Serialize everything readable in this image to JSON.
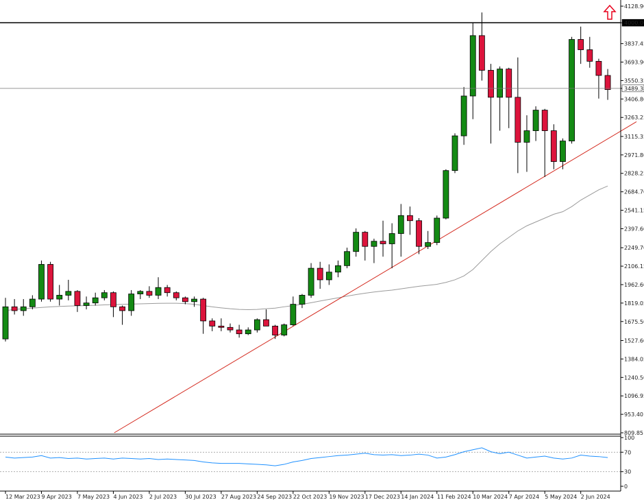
{
  "chart_data": [
    {
      "type": "candlestick",
      "timeframe": "weekly",
      "price_labels": [
        "4128.90",
        "4000.00",
        "3837.45",
        "3693.90",
        "3550.35",
        "3489.38",
        "3406.80",
        "3263.25",
        "3115.35",
        "2971.80",
        "2828.25",
        "2684.70",
        "2541.15",
        "2397.60",
        "2249.70",
        "2106.15",
        "1962.60",
        "1819.05",
        "1675.50",
        "1527.60",
        "1384.05",
        "1240.50",
        "1096.95",
        "953.40",
        "809.85"
      ],
      "ylim": [
        809.85,
        4128.9
      ],
      "date_labels": [
        "12 Mar 2023",
        "9 Apr 2023",
        "7 May 2023",
        "4 Jun 2023",
        "2 Jul 2023",
        "30 Jul 2023",
        "27 Aug 2023",
        "24 Sep 2023",
        "22 Oct 2023",
        "19 Nov 2023",
        "17 Dec 2023",
        "14 Jan 2024",
        "11 Feb 2024",
        "10 Mar 2024",
        "7 Apr 2024",
        "5 May 2024",
        "2 Jun 2024"
      ],
      "candles": [
        {
          "o": 1540,
          "h": 1860,
          "l": 1520,
          "c": 1790
        },
        {
          "o": 1790,
          "h": 1850,
          "l": 1730,
          "c": 1760
        },
        {
          "o": 1760,
          "h": 1850,
          "l": 1720,
          "c": 1790
        },
        {
          "o": 1790,
          "h": 1880,
          "l": 1770,
          "c": 1850
        },
        {
          "o": 1850,
          "h": 2150,
          "l": 1830,
          "c": 2120
        },
        {
          "o": 2120,
          "h": 2140,
          "l": 1830,
          "c": 1850
        },
        {
          "o": 1850,
          "h": 1960,
          "l": 1800,
          "c": 1880
        },
        {
          "o": 1880,
          "h": 2000,
          "l": 1840,
          "c": 1910
        },
        {
          "o": 1910,
          "h": 1920,
          "l": 1750,
          "c": 1800
        },
        {
          "o": 1800,
          "h": 1870,
          "l": 1770,
          "c": 1820
        },
        {
          "o": 1820,
          "h": 1900,
          "l": 1800,
          "c": 1860
        },
        {
          "o": 1860,
          "h": 1920,
          "l": 1840,
          "c": 1900
        },
        {
          "o": 1900,
          "h": 1910,
          "l": 1710,
          "c": 1790
        },
        {
          "o": 1790,
          "h": 1800,
          "l": 1650,
          "c": 1760
        },
        {
          "o": 1760,
          "h": 1920,
          "l": 1720,
          "c": 1890
        },
        {
          "o": 1890,
          "h": 1920,
          "l": 1850,
          "c": 1910
        },
        {
          "o": 1910,
          "h": 1950,
          "l": 1860,
          "c": 1880
        },
        {
          "o": 1880,
          "h": 2020,
          "l": 1850,
          "c": 1940
        },
        {
          "o": 1940,
          "h": 1960,
          "l": 1870,
          "c": 1900
        },
        {
          "o": 1900,
          "h": 1910,
          "l": 1840,
          "c": 1860
        },
        {
          "o": 1860,
          "h": 1870,
          "l": 1810,
          "c": 1830
        },
        {
          "o": 1830,
          "h": 1870,
          "l": 1790,
          "c": 1850
        },
        {
          "o": 1850,
          "h": 1860,
          "l": 1580,
          "c": 1680
        },
        {
          "o": 1680,
          "h": 1700,
          "l": 1600,
          "c": 1640
        },
        {
          "o": 1640,
          "h": 1700,
          "l": 1600,
          "c": 1630
        },
        {
          "o": 1630,
          "h": 1660,
          "l": 1590,
          "c": 1610
        },
        {
          "o": 1610,
          "h": 1650,
          "l": 1550,
          "c": 1580
        },
        {
          "o": 1580,
          "h": 1630,
          "l": 1570,
          "c": 1610
        },
        {
          "o": 1610,
          "h": 1700,
          "l": 1590,
          "c": 1690
        },
        {
          "o": 1690,
          "h": 1770,
          "l": 1640,
          "c": 1640
        },
        {
          "o": 1640,
          "h": 1650,
          "l": 1540,
          "c": 1570
        },
        {
          "o": 1570,
          "h": 1660,
          "l": 1560,
          "c": 1650
        },
        {
          "o": 1650,
          "h": 1870,
          "l": 1640,
          "c": 1810
        },
        {
          "o": 1810,
          "h": 1890,
          "l": 1780,
          "c": 1880
        },
        {
          "o": 1880,
          "h": 2130,
          "l": 1860,
          "c": 2090
        },
        {
          "o": 2090,
          "h": 2140,
          "l": 1930,
          "c": 2000
        },
        {
          "o": 2000,
          "h": 2120,
          "l": 1960,
          "c": 2060
        },
        {
          "o": 2060,
          "h": 2150,
          "l": 2020,
          "c": 2110
        },
        {
          "o": 2110,
          "h": 2250,
          "l": 2090,
          "c": 2220
        },
        {
          "o": 2220,
          "h": 2400,
          "l": 2180,
          "c": 2370
        },
        {
          "o": 2370,
          "h": 2380,
          "l": 2150,
          "c": 2260
        },
        {
          "o": 2260,
          "h": 2320,
          "l": 2130,
          "c": 2300
        },
        {
          "o": 2300,
          "h": 2460,
          "l": 2180,
          "c": 2280
        },
        {
          "o": 2280,
          "h": 2440,
          "l": 2090,
          "c": 2360
        },
        {
          "o": 2360,
          "h": 2590,
          "l": 2180,
          "c": 2500
        },
        {
          "o": 2500,
          "h": 2570,
          "l": 2350,
          "c": 2460
        },
        {
          "o": 2460,
          "h": 2480,
          "l": 2200,
          "c": 2260
        },
        {
          "o": 2260,
          "h": 2380,
          "l": 2240,
          "c": 2290
        },
        {
          "o": 2290,
          "h": 2500,
          "l": 2270,
          "c": 2480
        },
        {
          "o": 2480,
          "h": 2860,
          "l": 2470,
          "c": 2850
        },
        {
          "o": 2850,
          "h": 3140,
          "l": 2830,
          "c": 3120
        },
        {
          "o": 3120,
          "h": 3500,
          "l": 3050,
          "c": 3430
        },
        {
          "o": 3430,
          "h": 4000,
          "l": 3250,
          "c": 3900
        },
        {
          "o": 3900,
          "h": 4080,
          "l": 3550,
          "c": 3630
        },
        {
          "o": 3630,
          "h": 3680,
          "l": 3060,
          "c": 3420
        },
        {
          "o": 3420,
          "h": 3660,
          "l": 3160,
          "c": 3640
        },
        {
          "o": 3640,
          "h": 3650,
          "l": 3180,
          "c": 3420
        },
        {
          "o": 3420,
          "h": 3730,
          "l": 2830,
          "c": 3070
        },
        {
          "o": 3070,
          "h": 3280,
          "l": 2840,
          "c": 3160
        },
        {
          "o": 3160,
          "h": 3350,
          "l": 3080,
          "c": 3320
        },
        {
          "o": 3320,
          "h": 3330,
          "l": 2800,
          "c": 3160
        },
        {
          "o": 3160,
          "h": 3210,
          "l": 2860,
          "c": 2920
        },
        {
          "o": 2920,
          "h": 3100,
          "l": 2860,
          "c": 3080
        },
        {
          "o": 3080,
          "h": 3890,
          "l": 3060,
          "c": 3870
        },
        {
          "o": 3870,
          "h": 3970,
          "l": 3680,
          "c": 3790
        },
        {
          "o": 3790,
          "h": 3890,
          "l": 3650,
          "c": 3700
        },
        {
          "o": 3700,
          "h": 3720,
          "l": 3410,
          "c": 3590
        },
        {
          "o": 3590,
          "h": 3640,
          "l": 3400,
          "c": 3480
        }
      ],
      "moving_average": [
        1760,
        1770,
        1775,
        1780,
        1785,
        1790,
        1793,
        1796,
        1798,
        1800,
        1802,
        1805,
        1807,
        1809,
        1811,
        1813,
        1815,
        1817,
        1818,
        1818,
        1815,
        1810,
        1800,
        1790,
        1782,
        1775,
        1770,
        1768,
        1770,
        1775,
        1780,
        1790,
        1800,
        1810,
        1822,
        1835,
        1848,
        1860,
        1873,
        1885,
        1896,
        1905,
        1913,
        1920,
        1930,
        1940,
        1950,
        1957,
        1965,
        1980,
        2000,
        2030,
        2080,
        2150,
        2220,
        2280,
        2330,
        2380,
        2420,
        2450,
        2480,
        2510,
        2530,
        2570,
        2620,
        2660,
        2700,
        2730
      ],
      "trendline": {
        "start": {
          "week": 12.1,
          "value": 809.85
        },
        "end": {
          "week": 70.2,
          "value": 3230
        }
      },
      "horizontal_levels": [
        {
          "value": 4000,
          "label": "4000.00"
        },
        {
          "value": 3489.38,
          "label": "3489.38"
        }
      ],
      "indicator": {
        "scale_labels": [
          "100",
          "70",
          "30",
          "0"
        ],
        "levels": [
          70,
          30
        ],
        "values": [
          60,
          58,
          59,
          60,
          63,
          58,
          59,
          57,
          58,
          56,
          57,
          58,
          56,
          58,
          57,
          56,
          57,
          55,
          56,
          55,
          54,
          53,
          50,
          48,
          47,
          47,
          47,
          46,
          45,
          44,
          42,
          45,
          50,
          53,
          57,
          59,
          61,
          63,
          64,
          66,
          68,
          65,
          64,
          65,
          63,
          64,
          66,
          64,
          58,
          60,
          65,
          71,
          75,
          79,
          71,
          67,
          70,
          64,
          58,
          60,
          62,
          58,
          56,
          58,
          64,
          62,
          61,
          59
        ]
      }
    }
  ]
}
